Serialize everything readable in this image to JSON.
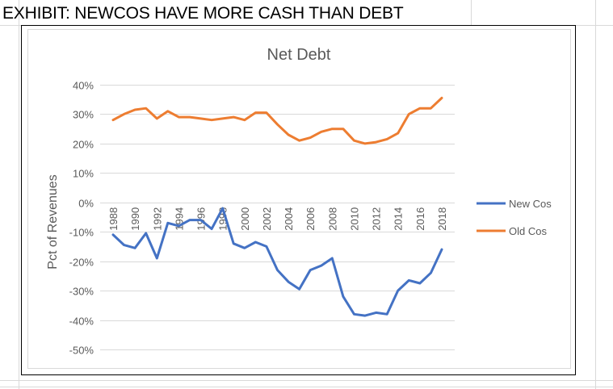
{
  "exhibit": {
    "title": "EXHIBIT: NEWCOS HAVE MORE CASH THAN DEBT"
  },
  "chart_data": {
    "type": "line",
    "title": "Net Debt",
    "xlabel": "",
    "ylabel": "Pct of Revenues",
    "ylim": [
      -50,
      40
    ],
    "yticks": [
      40,
      30,
      20,
      10,
      0,
      -10,
      -20,
      -30,
      -40,
      -50
    ],
    "ytick_labels": [
      "40%",
      "30%",
      "20%",
      "10%",
      "0%",
      "-10%",
      "-20%",
      "-30%",
      "-40%",
      "-50%"
    ],
    "xtick_labels": [
      "1988",
      "1990",
      "1992",
      "1994",
      "1996",
      "1998",
      "2000",
      "2002",
      "2004",
      "2006",
      "2008",
      "2010",
      "2012",
      "2014",
      "2016",
      "2018"
    ],
    "grid": true,
    "legend_position": "right",
    "x": [
      1988,
      1989,
      1990,
      1991,
      1992,
      1993,
      1994,
      1995,
      1996,
      1997,
      1998,
      1999,
      2000,
      2001,
      2002,
      2003,
      2004,
      2005,
      2006,
      2007,
      2008,
      2009,
      2010,
      2011,
      2012,
      2013,
      2014,
      2015,
      2016,
      2017,
      2018
    ],
    "series": [
      {
        "name": "New Cos",
        "color": "#4472c4",
        "values": [
          -11,
          -14.5,
          -15.5,
          -10.5,
          -19,
          -7,
          -8,
          -6,
          -6,
          -9,
          -2,
          -14,
          -15.5,
          -13.5,
          -15,
          -23,
          -27,
          -29.5,
          -23,
          -21.5,
          -19,
          -32,
          -38,
          -38.5,
          -37.5,
          -38,
          -30,
          -26.5,
          -27.5,
          -24,
          -16
        ]
      },
      {
        "name": "Old Cos",
        "color": "#ed7d31",
        "values": [
          28,
          30,
          31.5,
          32,
          28.5,
          31,
          29,
          29,
          28.5,
          28,
          28.5,
          29,
          28,
          30.5,
          30.5,
          26.5,
          23,
          21,
          22,
          24,
          25,
          25,
          21,
          20,
          20.5,
          21.5,
          23.5,
          30,
          32,
          32,
          35.5
        ]
      }
    ]
  }
}
